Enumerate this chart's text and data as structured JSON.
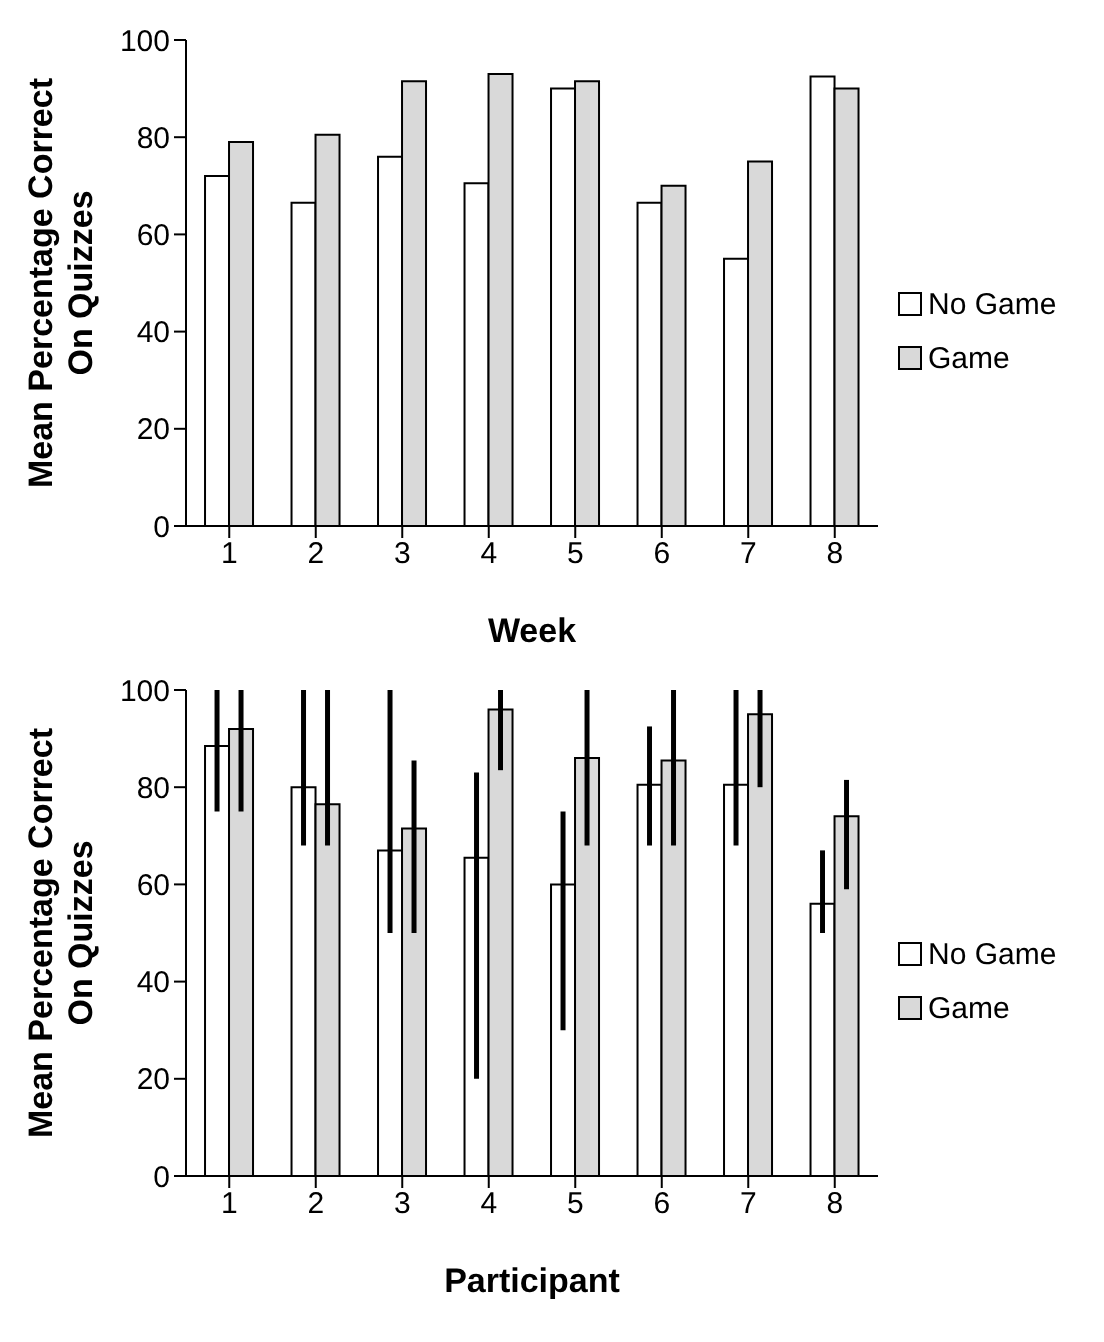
{
  "chart_data": [
    {
      "type": "bar",
      "xlabel": "Week",
      "ylabel": "Mean Percentage Correct On Quizzes",
      "categories": [
        "1",
        "2",
        "3",
        "4",
        "5",
        "6",
        "7",
        "8"
      ],
      "series": [
        {
          "name": "No Game",
          "color": "#ffffff",
          "values": [
            72,
            66.5,
            76,
            70.5,
            90,
            66.5,
            55,
            92.5
          ]
        },
        {
          "name": "Game",
          "color": "#d9d9d9",
          "values": [
            79,
            80.5,
            91.5,
            93,
            91.5,
            70,
            75,
            90
          ]
        }
      ],
      "ylim": [
        0,
        100
      ],
      "yticks": [
        0,
        20,
        40,
        60,
        80,
        100
      ],
      "grid": false,
      "legend": "right"
    },
    {
      "type": "bar",
      "xlabel": "Participant",
      "ylabel": "Mean Percentage Correct On Quizzes",
      "categories": [
        "1",
        "2",
        "3",
        "4",
        "5",
        "6",
        "7",
        "8"
      ],
      "series": [
        {
          "name": "No Game",
          "color": "#ffffff",
          "values": [
            88.5,
            80,
            67,
            65.5,
            60,
            80.5,
            80.5,
            56
          ],
          "errors": [
            [
              75,
              100
            ],
            [
              68,
              100
            ],
            [
              50,
              100
            ],
            [
              20,
              83
            ],
            [
              30,
              75
            ],
            [
              68,
              92.5
            ],
            [
              68,
              100
            ],
            [
              50,
              67
            ]
          ]
        },
        {
          "name": "Game",
          "color": "#d9d9d9",
          "values": [
            92,
            76.5,
            71.5,
            96,
            86,
            85.5,
            95,
            74
          ],
          "errors": [
            [
              75,
              100
            ],
            [
              68,
              100
            ],
            [
              50,
              85.5
            ],
            [
              83.5,
              100
            ],
            [
              68,
              100
            ],
            [
              68,
              100
            ],
            [
              80,
              100
            ],
            [
              59,
              81.5
            ]
          ]
        }
      ],
      "ylim": [
        0,
        100
      ],
      "yticks": [
        0,
        20,
        40,
        60,
        80,
        100
      ],
      "grid": false,
      "legend": "right"
    }
  ]
}
